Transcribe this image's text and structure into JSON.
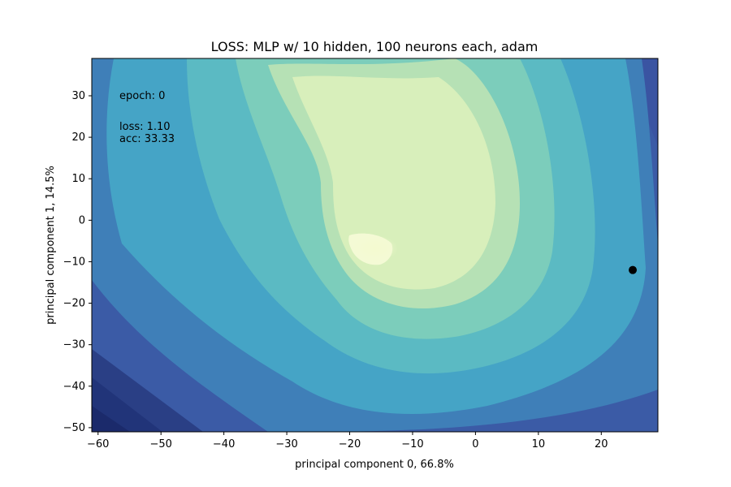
{
  "chart_data": {
    "type": "contour",
    "title": "LOSS: MLP w/ 10 hidden, 100 neurons each, adam",
    "xlabel": "principal component 0, 66.8%",
    "ylabel": "principal component 1, 14.5%",
    "xlim": [
      -61,
      29
    ],
    "ylim": [
      -51,
      39
    ],
    "xticks": [
      -60,
      -50,
      -40,
      -30,
      -20,
      -10,
      0,
      10,
      20
    ],
    "xtick_labels": [
      "−60",
      "−50",
      "−40",
      "−30",
      "−20",
      "−10",
      "0",
      "10",
      "20"
    ],
    "yticks": [
      30,
      20,
      10,
      0,
      -10,
      -20,
      -30,
      -40,
      -50
    ],
    "ytick_labels": [
      "30",
      "20",
      "10",
      "0",
      "−10",
      "−20",
      "−30",
      "−40",
      "−50"
    ],
    "grid": false,
    "colormap": "YlGnBu",
    "annotations": {
      "epoch": "epoch: 0",
      "loss": "loss:  1.10",
      "acc": "acc:  33.33"
    },
    "marker": {
      "x": 25,
      "y": -12,
      "color": "#000000"
    }
  }
}
